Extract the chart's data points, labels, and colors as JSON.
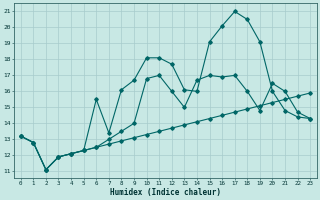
{
  "xlabel": "Humidex (Indice chaleur)",
  "bg_color": "#c8e8e4",
  "grid_color": "#a8cccc",
  "line_color": "#006666",
  "xlim_min": -0.5,
  "xlim_max": 23.5,
  "ylim_min": 10.6,
  "ylim_max": 21.5,
  "xticks": [
    0,
    1,
    2,
    3,
    4,
    5,
    6,
    7,
    8,
    9,
    10,
    11,
    12,
    13,
    14,
    15,
    16,
    17,
    18,
    19,
    20,
    21,
    22,
    23
  ],
  "yticks": [
    11,
    12,
    13,
    14,
    15,
    16,
    17,
    18,
    19,
    20,
    21
  ],
  "line1_x": [
    0,
    1,
    2,
    3,
    4,
    5,
    6,
    7,
    8,
    9,
    10,
    11,
    12,
    13,
    14,
    15,
    16,
    17,
    18,
    19,
    20,
    21,
    22,
    23
  ],
  "line1_y": [
    13.2,
    12.8,
    11.1,
    11.9,
    12.1,
    12.3,
    15.5,
    13.4,
    16.1,
    16.7,
    18.1,
    18.1,
    17.7,
    16.1,
    16.0,
    19.1,
    20.1,
    21.0,
    20.5,
    19.1,
    16.0,
    14.8,
    14.4,
    14.3
  ],
  "line2_x": [
    0,
    1,
    2,
    3,
    4,
    5,
    6,
    7,
    8,
    9,
    10,
    11,
    12,
    13,
    14,
    15,
    16,
    17,
    18,
    19,
    20,
    21,
    22,
    23
  ],
  "line2_y": [
    13.2,
    12.8,
    11.1,
    11.9,
    12.1,
    12.3,
    12.5,
    13.0,
    13.5,
    14.0,
    16.8,
    17.0,
    16.0,
    15.0,
    16.7,
    17.0,
    16.9,
    17.0,
    16.0,
    14.8,
    16.5,
    16.0,
    14.7,
    14.3
  ],
  "line3_x": [
    0,
    1,
    2,
    3,
    4,
    5,
    6,
    7,
    8,
    9,
    10,
    11,
    12,
    13,
    14,
    15,
    16,
    17,
    18,
    19,
    20,
    21,
    22,
    23
  ],
  "line3_y": [
    13.2,
    12.8,
    11.1,
    11.9,
    12.1,
    12.3,
    12.5,
    12.7,
    12.9,
    13.1,
    13.3,
    13.5,
    13.7,
    13.9,
    14.1,
    14.3,
    14.5,
    14.7,
    14.9,
    15.1,
    15.3,
    15.5,
    15.7,
    15.9
  ]
}
